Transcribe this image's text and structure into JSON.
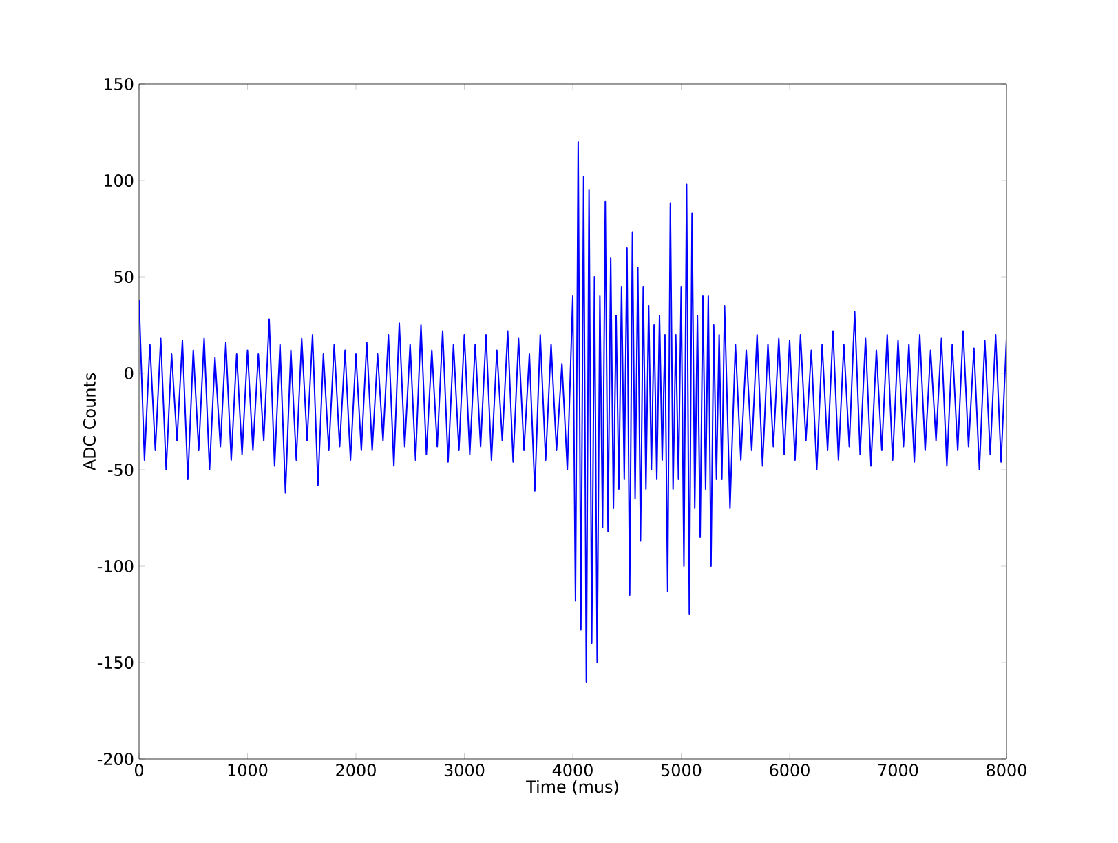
{
  "chart_data": {
    "type": "line",
    "xlabel": "Time (mus)",
    "ylabel": "ADC Counts",
    "xlim": [
      0,
      8000
    ],
    "ylim": [
      -200,
      150
    ],
    "xticks": [
      0,
      1000,
      2000,
      3000,
      4000,
      5000,
      6000,
      7000,
      8000
    ],
    "yticks": [
      -200,
      -150,
      -100,
      -50,
      0,
      50,
      100,
      150
    ],
    "series": [
      {
        "color": "#0000ff",
        "x": [
          0,
          50,
          100,
          150,
          200,
          250,
          300,
          350,
          400,
          450,
          500,
          550,
          600,
          650,
          700,
          750,
          800,
          850,
          900,
          950,
          1000,
          1050,
          1100,
          1150,
          1200,
          1250,
          1300,
          1350,
          1400,
          1450,
          1500,
          1550,
          1600,
          1650,
          1700,
          1750,
          1800,
          1850,
          1900,
          1950,
          2000,
          2050,
          2100,
          2150,
          2200,
          2250,
          2300,
          2350,
          2400,
          2450,
          2500,
          2550,
          2600,
          2650,
          2700,
          2750,
          2800,
          2850,
          2900,
          2950,
          3000,
          3050,
          3100,
          3150,
          3200,
          3250,
          3300,
          3350,
          3400,
          3450,
          3500,
          3550,
          3600,
          3650,
          3700,
          3750,
          3800,
          3850,
          3900,
          3950,
          4000,
          4025,
          4050,
          4075,
          4100,
          4125,
          4150,
          4175,
          4200,
          4225,
          4250,
          4275,
          4300,
          4325,
          4350,
          4375,
          4400,
          4425,
          4450,
          4475,
          4500,
          4525,
          4550,
          4575,
          4600,
          4625,
          4650,
          4675,
          4700,
          4725,
          4750,
          4775,
          4800,
          4825,
          4850,
          4875,
          4900,
          4925,
          4950,
          4975,
          5000,
          5025,
          5050,
          5075,
          5100,
          5125,
          5150,
          5175,
          5200,
          5225,
          5250,
          5275,
          5300,
          5325,
          5350,
          5375,
          5400,
          5450,
          5500,
          5550,
          5600,
          5650,
          5700,
          5750,
          5800,
          5850,
          5900,
          5950,
          6000,
          6050,
          6100,
          6150,
          6200,
          6250,
          6300,
          6350,
          6400,
          6450,
          6500,
          6550,
          6600,
          6650,
          6700,
          6750,
          6800,
          6850,
          6900,
          6950,
          7000,
          7050,
          7100,
          7150,
          7200,
          7250,
          7300,
          7350,
          7400,
          7450,
          7500,
          7550,
          7600,
          7650,
          7700,
          7750,
          7800,
          7850,
          7900,
          7950,
          8000
        ],
        "values": [
          38,
          -45,
          15,
          -40,
          18,
          -50,
          10,
          -35,
          17,
          -55,
          12,
          -40,
          18,
          -50,
          8,
          -38,
          16,
          -45,
          10,
          -42,
          12,
          -40,
          10,
          -35,
          28,
          -48,
          15,
          -62,
          12,
          -45,
          18,
          -35,
          20,
          -58,
          10,
          -40,
          15,
          -38,
          12,
          -45,
          10,
          -40,
          16,
          -40,
          10,
          -35,
          20,
          -48,
          26,
          -38,
          15,
          -45,
          25,
          -42,
          12,
          -38,
          22,
          -46,
          15,
          -40,
          20,
          -42,
          15,
          -38,
          20,
          -45,
          12,
          -35,
          22,
          -46,
          18,
          -40,
          10,
          -61,
          20,
          -45,
          15,
          -40,
          5,
          -50,
          40,
          -118,
          120,
          -133,
          102,
          -160,
          95,
          -140,
          50,
          -150,
          40,
          -80,
          89,
          -82,
          60,
          -70,
          30,
          -60,
          45,
          -55,
          65,
          -115,
          73,
          -65,
          55,
          -87,
          45,
          -60,
          35,
          -50,
          25,
          -55,
          30,
          -45,
          20,
          -113,
          88,
          -60,
          20,
          -55,
          45,
          -100,
          98,
          -125,
          83,
          -70,
          30,
          -85,
          40,
          -60,
          40,
          -100,
          25,
          -55,
          20,
          -55,
          35,
          -70,
          15,
          -45,
          12,
          -40,
          20,
          -48,
          15,
          -38,
          18,
          -42,
          17,
          -45,
          20,
          -35,
          12,
          -50,
          15,
          -40,
          22,
          -45,
          15,
          -38,
          32,
          -42,
          18,
          -48,
          12,
          -40,
          20,
          -45,
          17,
          -38,
          15,
          -46,
          20,
          -40,
          12,
          -35,
          18,
          -48,
          15,
          -40,
          22,
          -38,
          13,
          -50,
          17,
          -42,
          20,
          -46,
          18
        ]
      }
    ]
  }
}
